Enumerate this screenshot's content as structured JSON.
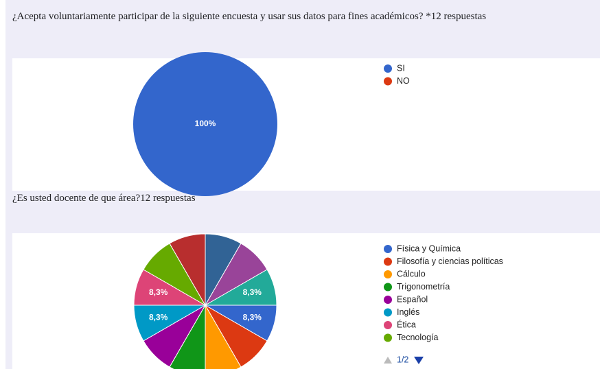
{
  "chart_data": [
    {
      "type": "pie",
      "title": "¿Acepta voluntariamente participar de la siguiente encuesta y usar sus datos para fines académicos? *",
      "subtitle": "12 respuestas",
      "categories": [
        "SI",
        "NO"
      ],
      "values": [
        100,
        0
      ],
      "value_labels": [
        "100%",
        null
      ],
      "colors": [
        "#3366cc",
        "#dc3912"
      ]
    },
    {
      "type": "pie",
      "title": "¿Es usted docente de que área?",
      "subtitle": "12 respuestas",
      "categories": [
        "Física y Química",
        "Filosofía y ciencias políticas",
        "Cálculo",
        "Trigonometría",
        "Español",
        "Inglés",
        "Ética",
        "Tecnología",
        null,
        null,
        null,
        null
      ],
      "values": [
        8.3,
        8.3,
        8.3,
        8.3,
        8.3,
        8.3,
        8.3,
        8.3,
        8.3,
        8.3,
        8.3,
        8.3
      ],
      "value_labels": [
        "8,3%",
        null,
        null,
        null,
        null,
        "8,3%",
        "8,3%",
        null,
        null,
        null,
        null,
        "8,3%"
      ],
      "colors": [
        "#3366cc",
        "#dc3912",
        "#ff9900",
        "#109618",
        "#990099",
        "#0099c6",
        "#dd4477",
        "#66aa00",
        "#b82e2e",
        "#316395",
        "#994499",
        "#22aa99"
      ],
      "legend_page": "1/2"
    }
  ]
}
